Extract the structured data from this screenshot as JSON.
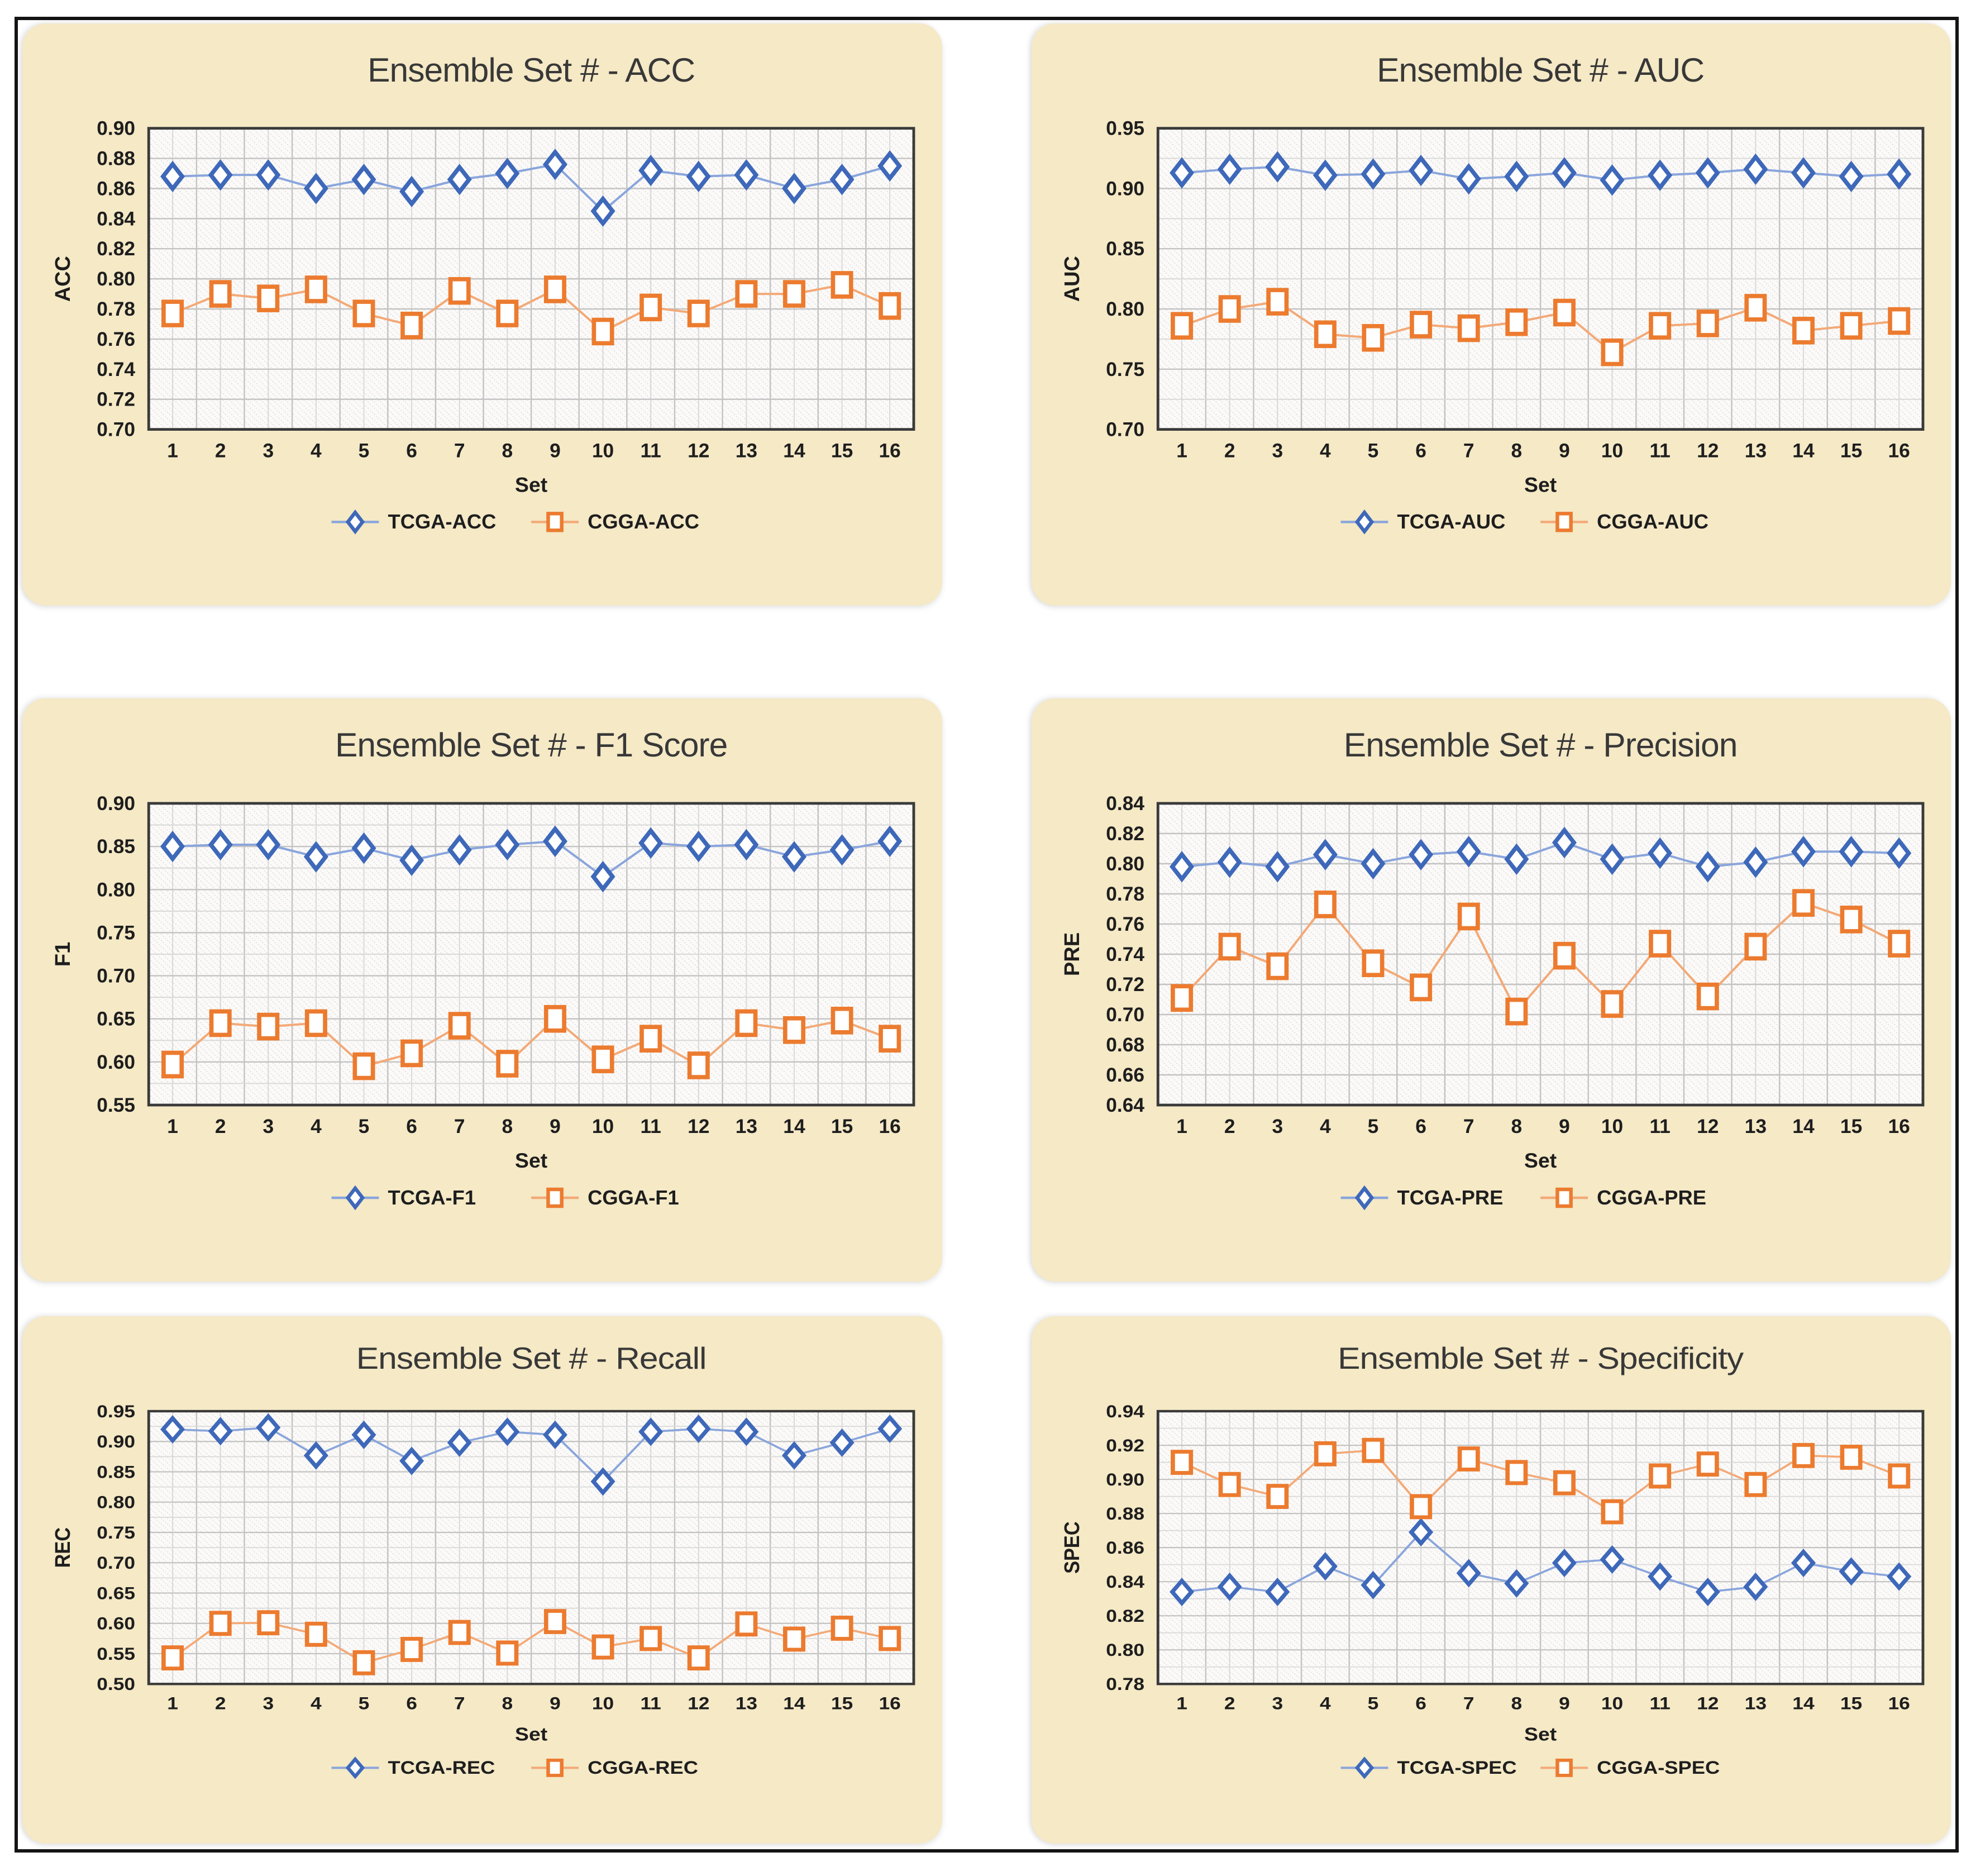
{
  "figure_title": "Ensemble evaluation metrics per set (TCGA vs CGGA)",
  "colors": {
    "tcga_marker": "#3E68B9",
    "tcga_line": "#8AA5DC",
    "cgga_marker": "#EC7B2F",
    "cgga_line": "#F3A977",
    "panel_bg": "#F5E9C6",
    "plot_bg": "#FBFAF8",
    "hatch": "#DCDCDC",
    "grid_major": "#C3C3C3",
    "grid_minor": "#D9D9D9",
    "plot_border": "#3A3A3A",
    "tick_text": "#1E1E1E",
    "title_text": "#383838"
  },
  "chart_data": [
    {
      "type": "line",
      "title": "Ensemble Set # - ACC",
      "xlabel": "Set",
      "ylabel": "ACC",
      "x": [
        1,
        2,
        3,
        4,
        5,
        6,
        7,
        8,
        9,
        10,
        11,
        12,
        13,
        14,
        15,
        16
      ],
      "ylim": [
        0.7,
        0.9
      ],
      "ytick_step": 0.02,
      "y_minor_per_major": 1,
      "grid": true,
      "legend_position": "bottom",
      "series": [
        {
          "name": "TCGA-ACC",
          "marker": "diamond",
          "color_key": "tcga",
          "values": [
            0.868,
            0.869,
            0.869,
            0.86,
            0.866,
            0.858,
            0.866,
            0.87,
            0.876,
            0.845,
            0.872,
            0.868,
            0.869,
            0.86,
            0.866,
            0.875
          ]
        },
        {
          "name": "CGGA-ACC",
          "marker": "square",
          "color_key": "cgga",
          "values": [
            0.777,
            0.79,
            0.787,
            0.793,
            0.777,
            0.769,
            0.792,
            0.777,
            0.793,
            0.765,
            0.781,
            0.777,
            0.79,
            0.79,
            0.796,
            0.782
          ]
        }
      ]
    },
    {
      "type": "line",
      "title": "Ensemble Set # - AUC",
      "xlabel": "Set",
      "ylabel": "AUC",
      "x": [
        1,
        2,
        3,
        4,
        5,
        6,
        7,
        8,
        9,
        10,
        11,
        12,
        13,
        14,
        15,
        16
      ],
      "ylim": [
        0.7,
        0.95
      ],
      "ytick_step": 0.05,
      "y_minor_per_major": 2,
      "grid": true,
      "legend_position": "bottom",
      "series": [
        {
          "name": "TCGA-AUC",
          "marker": "diamond",
          "color_key": "tcga",
          "values": [
            0.913,
            0.916,
            0.918,
            0.911,
            0.912,
            0.915,
            0.908,
            0.91,
            0.913,
            0.907,
            0.911,
            0.913,
            0.916,
            0.913,
            0.91,
            0.912
          ]
        },
        {
          "name": "CGGA-AUC",
          "marker": "square",
          "color_key": "cgga",
          "values": [
            0.786,
            0.8,
            0.806,
            0.779,
            0.776,
            0.787,
            0.784,
            0.789,
            0.797,
            0.764,
            0.786,
            0.788,
            0.801,
            0.782,
            0.786,
            0.79
          ]
        }
      ]
    },
    {
      "type": "line",
      "title": "Ensemble Set # - F1 Score",
      "xlabel": "Set",
      "ylabel": "F1",
      "x": [
        1,
        2,
        3,
        4,
        5,
        6,
        7,
        8,
        9,
        10,
        11,
        12,
        13,
        14,
        15,
        16
      ],
      "ylim": [
        0.55,
        0.9
      ],
      "ytick_step": 0.05,
      "y_minor_per_major": 2,
      "grid": true,
      "legend_position": "bottom",
      "series": [
        {
          "name": "TCGA-F1",
          "marker": "diamond",
          "color_key": "tcga",
          "values": [
            0.85,
            0.852,
            0.852,
            0.838,
            0.848,
            0.834,
            0.846,
            0.852,
            0.856,
            0.815,
            0.854,
            0.85,
            0.852,
            0.838,
            0.846,
            0.856
          ]
        },
        {
          "name": "CGGA-F1",
          "marker": "square",
          "color_key": "cgga",
          "values": [
            0.597,
            0.645,
            0.641,
            0.645,
            0.595,
            0.61,
            0.642,
            0.598,
            0.65,
            0.603,
            0.627,
            0.596,
            0.645,
            0.637,
            0.648,
            0.627
          ]
        }
      ]
    },
    {
      "type": "line",
      "title": "Ensemble Set # - Precision",
      "xlabel": "Set",
      "ylabel": "PRE",
      "x": [
        1,
        2,
        3,
        4,
        5,
        6,
        7,
        8,
        9,
        10,
        11,
        12,
        13,
        14,
        15,
        16
      ],
      "ylim": [
        0.64,
        0.84
      ],
      "ytick_step": 0.02,
      "y_minor_per_major": 1,
      "grid": true,
      "legend_position": "bottom",
      "series": [
        {
          "name": "TCGA-PRE",
          "marker": "diamond",
          "color_key": "tcga",
          "values": [
            0.798,
            0.801,
            0.798,
            0.806,
            0.8,
            0.806,
            0.808,
            0.803,
            0.814,
            0.803,
            0.807,
            0.798,
            0.801,
            0.808,
            0.808,
            0.807
          ]
        },
        {
          "name": "CGGA-PRE",
          "marker": "square",
          "color_key": "cgga",
          "values": [
            0.711,
            0.745,
            0.732,
            0.773,
            0.734,
            0.718,
            0.765,
            0.702,
            0.739,
            0.707,
            0.747,
            0.712,
            0.745,
            0.774,
            0.763,
            0.747
          ]
        }
      ]
    },
    {
      "type": "line",
      "title": "Ensemble Set # - Recall",
      "xlabel": "Set",
      "ylabel": "REC",
      "x": [
        1,
        2,
        3,
        4,
        5,
        6,
        7,
        8,
        9,
        10,
        11,
        12,
        13,
        14,
        15,
        16
      ],
      "ylim": [
        0.5,
        0.95
      ],
      "ytick_step": 0.05,
      "y_minor_per_major": 2,
      "grid": true,
      "legend_position": "bottom",
      "series": [
        {
          "name": "TCGA-REC",
          "marker": "diamond",
          "color_key": "tcga",
          "values": [
            0.92,
            0.917,
            0.923,
            0.877,
            0.911,
            0.868,
            0.898,
            0.916,
            0.911,
            0.834,
            0.916,
            0.921,
            0.916,
            0.877,
            0.898,
            0.921
          ]
        },
        {
          "name": "CGGA-REC",
          "marker": "square",
          "color_key": "cgga",
          "values": [
            0.543,
            0.6,
            0.601,
            0.582,
            0.535,
            0.557,
            0.585,
            0.551,
            0.603,
            0.561,
            0.575,
            0.543,
            0.599,
            0.574,
            0.592,
            0.575
          ]
        }
      ]
    },
    {
      "type": "line",
      "title": "Ensemble Set # - Specificity",
      "xlabel": "Set",
      "ylabel": "SPEC",
      "x": [
        1,
        2,
        3,
        4,
        5,
        6,
        7,
        8,
        9,
        10,
        11,
        12,
        13,
        14,
        15,
        16
      ],
      "ylim": [
        0.78,
        0.94
      ],
      "ytick_step": 0.02,
      "y_minor_per_major": 2,
      "grid": true,
      "legend_position": "bottom",
      "series": [
        {
          "name": "TCGA-SPEC",
          "marker": "diamond",
          "color_key": "tcga",
          "values": [
            0.834,
            0.837,
            0.834,
            0.849,
            0.838,
            0.869,
            0.845,
            0.839,
            0.851,
            0.853,
            0.843,
            0.834,
            0.837,
            0.851,
            0.846,
            0.843
          ]
        },
        {
          "name": "CGGA-SPEC",
          "marker": "square",
          "color_key": "cgga",
          "values": [
            0.91,
            0.897,
            0.89,
            0.915,
            0.917,
            0.884,
            0.912,
            0.904,
            0.898,
            0.881,
            0.902,
            0.909,
            0.897,
            0.914,
            0.913,
            0.902
          ]
        }
      ]
    }
  ]
}
